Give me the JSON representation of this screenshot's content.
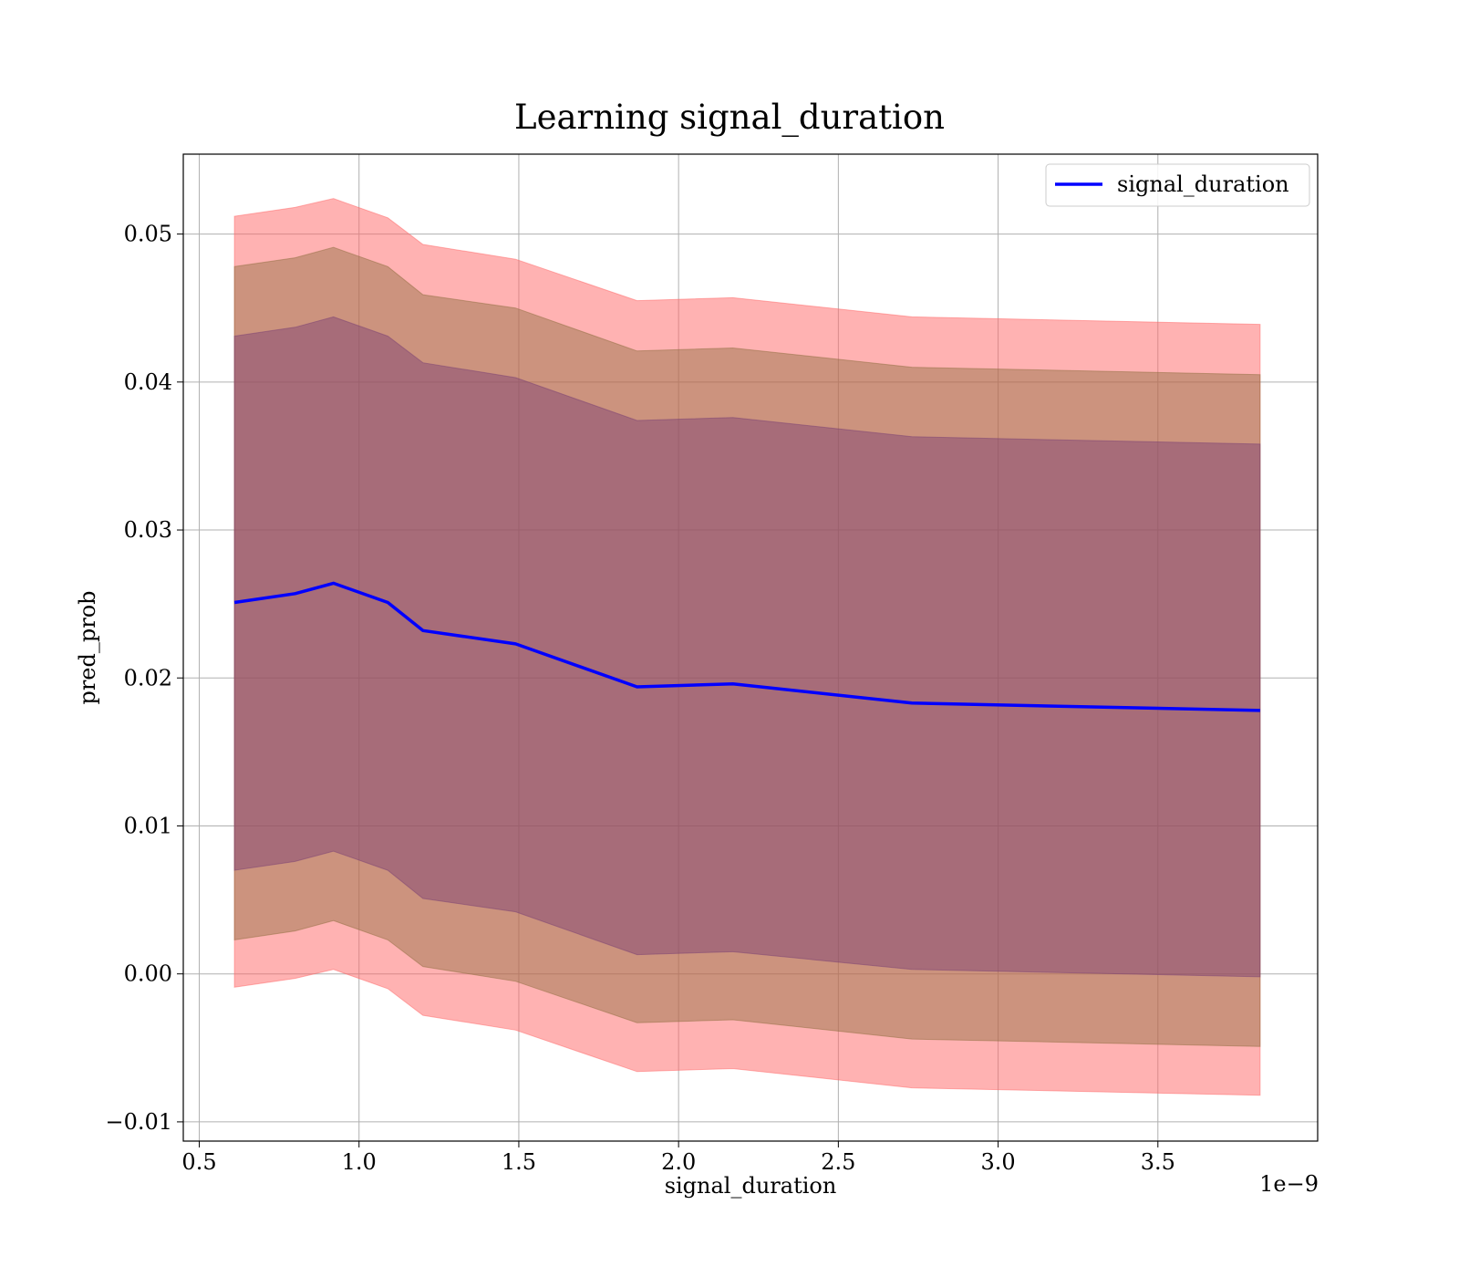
{
  "chart_data": {
    "type": "line",
    "title": "Learning signal_duration",
    "xlabel": "signal_duration",
    "ylabel": "pred_prob",
    "x_offset_label": "1e−9",
    "xlim": [
      0.45,
      4.0
    ],
    "ylim": [
      -0.0113,
      0.0554
    ],
    "x_ticks": [
      0.5,
      1.0,
      1.5,
      2.0,
      2.5,
      3.0,
      3.5
    ],
    "x_tick_labels": [
      "0.5",
      "1.0",
      "1.5",
      "2.0",
      "2.5",
      "3.0",
      "3.5"
    ],
    "y_ticks": [
      -0.01,
      0.0,
      0.01,
      0.02,
      0.03,
      0.04,
      0.05
    ],
    "y_tick_labels": [
      "−0.01",
      "0.00",
      "0.01",
      "0.02",
      "0.03",
      "0.04",
      "0.05"
    ],
    "grid": true,
    "legend_position": "top-right",
    "x": [
      0.61,
      0.8,
      0.92,
      1.09,
      1.2,
      1.49,
      1.87,
      2.17,
      2.73,
      3.82
    ],
    "series": [
      {
        "name": "signal_duration",
        "color": "#0000ff",
        "values": [
          0.0251,
          0.0257,
          0.0264,
          0.0251,
          0.0232,
          0.0223,
          0.0194,
          0.0196,
          0.0183,
          0.0178
        ]
      }
    ],
    "bands": [
      {
        "color": "#ff6666",
        "opacity": 0.5,
        "lower": [
          -0.0009,
          -0.0003,
          0.0003,
          -0.001,
          -0.0028,
          -0.0038,
          -0.0066,
          -0.0064,
          -0.0077,
          -0.0082
        ],
        "upper": [
          0.0512,
          0.0518,
          0.0524,
          0.0511,
          0.0493,
          0.0483,
          0.0455,
          0.0457,
          0.0444,
          0.0439
        ]
      },
      {
        "color": "#8f6d3f",
        "opacity": 0.45,
        "lower": [
          0.0023,
          0.0029,
          0.0036,
          0.0023,
          0.0005,
          -0.0005,
          -0.0033,
          -0.0031,
          -0.0044,
          -0.0049
        ],
        "upper": [
          0.0478,
          0.0484,
          0.0491,
          0.0478,
          0.0459,
          0.045,
          0.0421,
          0.0423,
          0.041,
          0.0405
        ]
      },
      {
        "color": "#7a3f73",
        "opacity": 0.45,
        "lower": [
          0.007,
          0.0076,
          0.0083,
          0.007,
          0.0051,
          0.0042,
          0.0013,
          0.0015,
          0.0003,
          -0.0002
        ],
        "upper": [
          0.0431,
          0.0437,
          0.0444,
          0.0431,
          0.0413,
          0.0403,
          0.0374,
          0.0376,
          0.0363,
          0.0358
        ]
      }
    ]
  }
}
